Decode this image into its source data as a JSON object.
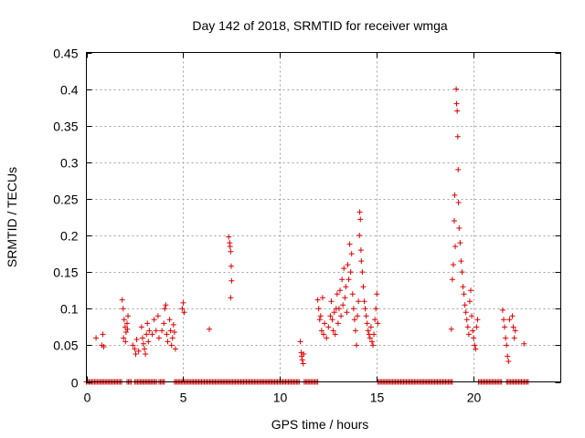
{
  "chart_data": {
    "type": "scatter",
    "title": "Day 142 of 2018, SRMTID for receiver wmga",
    "xlabel": "GPS time / hours",
    "ylabel": "SRMTID / TECUs",
    "xlim": [
      0,
      24.5
    ],
    "ylim": [
      0,
      0.45
    ],
    "x_ticks": [
      0,
      5,
      10,
      15,
      20
    ],
    "x_tick_labels": [
      "0",
      "5",
      "10",
      "15",
      "20"
    ],
    "y_ticks": [
      0,
      0.05,
      0.1,
      0.15,
      0.2,
      0.25,
      0.3,
      0.35,
      0.4,
      0.45
    ],
    "y_tick_labels": [
      "0",
      "0.05",
      "0.1",
      "0.15",
      "0.2",
      "0.25",
      "0.3",
      "0.35",
      "0.4",
      "0.45"
    ],
    "grid": true,
    "marker": "plus",
    "color": "#dd0000",
    "series": [
      {
        "name": "SRMTID",
        "points": [
          [
            0.5,
            0.06
          ],
          [
            0.8,
            0.05
          ],
          [
            0.85,
            0.065
          ],
          [
            0.9,
            0.048
          ],
          [
            1.85,
            0.112
          ],
          [
            1.9,
            0.1
          ],
          [
            1.95,
            0.085
          ],
          [
            2.0,
            0.075
          ],
          [
            2.05,
            0.068
          ],
          [
            2.1,
            0.08
          ],
          [
            2.15,
            0.09
          ],
          [
            1.92,
            0.06
          ],
          [
            2.02,
            0.055
          ],
          [
            2.12,
            0.072
          ],
          [
            2.4,
            0.05
          ],
          [
            2.5,
            0.045
          ],
          [
            2.55,
            0.038
          ],
          [
            2.6,
            0.058
          ],
          [
            2.7,
            0.042
          ],
          [
            2.85,
            0.075
          ],
          [
            2.9,
            0.06
          ],
          [
            2.95,
            0.052
          ],
          [
            3.0,
            0.045
          ],
          [
            3.05,
            0.038
          ],
          [
            3.1,
            0.065
          ],
          [
            3.15,
            0.08
          ],
          [
            3.2,
            0.055
          ],
          [
            3.25,
            0.07
          ],
          [
            3.4,
            0.065
          ],
          [
            3.5,
            0.085
          ],
          [
            3.6,
            0.07
          ],
          [
            3.7,
            0.09
          ],
          [
            3.75,
            0.06
          ],
          [
            3.9,
            0.07
          ],
          [
            4.0,
            0.08
          ],
          [
            4.05,
            0.1
          ],
          [
            4.1,
            0.105
          ],
          [
            4.15,
            0.065
          ],
          [
            4.2,
            0.055
          ],
          [
            4.3,
            0.085
          ],
          [
            4.35,
            0.07
          ],
          [
            4.4,
            0.05
          ],
          [
            4.45,
            0.06
          ],
          [
            4.5,
            0.078
          ],
          [
            4.55,
            0.068
          ],
          [
            4.6,
            0.045
          ],
          [
            4.95,
            0.1
          ],
          [
            5.0,
            0.108
          ],
          [
            5.05,
            0.095
          ],
          [
            6.35,
            0.072
          ],
          [
            7.35,
            0.198
          ],
          [
            7.4,
            0.19
          ],
          [
            7.42,
            0.185
          ],
          [
            7.45,
            0.178
          ],
          [
            7.48,
            0.158
          ],
          [
            7.5,
            0.138
          ],
          [
            7.45,
            0.115
          ],
          [
            11.05,
            0.055
          ],
          [
            11.1,
            0.04
          ],
          [
            11.12,
            0.035
          ],
          [
            11.15,
            0.03
          ],
          [
            11.2,
            0.025
          ],
          [
            11.22,
            0.038
          ],
          [
            11.95,
            0.112
          ],
          [
            12.0,
            0.1
          ],
          [
            12.05,
            0.085
          ],
          [
            12.1,
            0.09
          ],
          [
            12.15,
            0.07
          ],
          [
            12.2,
            0.115
          ],
          [
            12.25,
            0.065
          ],
          [
            12.3,
            0.08
          ],
          [
            12.4,
            0.06
          ],
          [
            12.5,
            0.075
          ],
          [
            12.6,
            0.09
          ],
          [
            12.65,
            0.11
          ],
          [
            12.7,
            0.085
          ],
          [
            12.75,
            0.07
          ],
          [
            12.8,
            0.095
          ],
          [
            12.85,
            0.065
          ],
          [
            12.9,
            0.1
          ],
          [
            12.95,
            0.12
          ],
          [
            13.0,
            0.08
          ],
          [
            13.05,
            0.1
          ],
          [
            13.1,
            0.125
          ],
          [
            13.15,
            0.09
          ],
          [
            13.2,
            0.14
          ],
          [
            13.25,
            0.105
          ],
          [
            13.3,
            0.155
          ],
          [
            13.35,
            0.115
          ],
          [
            13.4,
            0.13
          ],
          [
            13.45,
            0.095
          ],
          [
            13.5,
            0.16
          ],
          [
            13.55,
            0.14
          ],
          [
            13.6,
            0.188
          ],
          [
            13.65,
            0.15
          ],
          [
            13.7,
            0.175
          ],
          [
            13.75,
            0.12
          ],
          [
            13.8,
            0.1
          ],
          [
            13.85,
            0.085
          ],
          [
            13.9,
            0.07
          ],
          [
            13.95,
            0.05
          ],
          [
            14.0,
            0.09
          ],
          [
            14.05,
            0.11
          ],
          [
            14.1,
            0.2
          ],
          [
            14.12,
            0.232
          ],
          [
            14.15,
            0.222
          ],
          [
            14.18,
            0.18
          ],
          [
            14.2,
            0.165
          ],
          [
            14.25,
            0.15
          ],
          [
            14.3,
            0.13
          ],
          [
            14.35,
            0.11
          ],
          [
            14.4,
            0.1
          ],
          [
            14.45,
            0.09
          ],
          [
            14.5,
            0.08
          ],
          [
            14.55,
            0.07
          ],
          [
            14.6,
            0.065
          ],
          [
            14.65,
            0.06
          ],
          [
            14.7,
            0.075
          ],
          [
            14.75,
            0.055
          ],
          [
            14.8,
            0.05
          ],
          [
            14.85,
            0.065
          ],
          [
            14.9,
            0.085
          ],
          [
            14.95,
            0.1
          ],
          [
            15.0,
            0.12
          ],
          [
            15.05,
            0.08
          ],
          [
            18.85,
            0.072
          ],
          [
            18.9,
            0.14
          ],
          [
            18.95,
            0.16
          ],
          [
            19.0,
            0.22
          ],
          [
            19.02,
            0.255
          ],
          [
            19.05,
            0.185
          ],
          [
            19.1,
            0.4
          ],
          [
            19.12,
            0.38
          ],
          [
            19.15,
            0.37
          ],
          [
            19.18,
            0.335
          ],
          [
            19.2,
            0.29
          ],
          [
            19.22,
            0.245
          ],
          [
            19.25,
            0.21
          ],
          [
            19.3,
            0.19
          ],
          [
            19.35,
            0.165
          ],
          [
            19.4,
            0.15
          ],
          [
            19.45,
            0.13
          ],
          [
            19.5,
            0.12
          ],
          [
            19.55,
            0.105
          ],
          [
            19.6,
            0.095
          ],
          [
            19.65,
            0.085
          ],
          [
            19.7,
            0.075
          ],
          [
            19.75,
            0.065
          ],
          [
            19.8,
            0.11
          ],
          [
            19.85,
            0.125
          ],
          [
            19.9,
            0.09
          ],
          [
            19.95,
            0.07
          ],
          [
            20.0,
            0.06
          ],
          [
            20.05,
            0.05
          ],
          [
            20.1,
            0.045
          ],
          [
            20.15,
            0.075
          ],
          [
            20.2,
            0.085
          ],
          [
            21.5,
            0.098
          ],
          [
            21.55,
            0.085
          ],
          [
            21.6,
            0.075
          ],
          [
            21.65,
            0.06
          ],
          [
            21.7,
            0.05
          ],
          [
            21.75,
            0.035
          ],
          [
            21.8,
            0.028
          ],
          [
            21.85,
            0.085
          ],
          [
            22.0,
            0.09
          ],
          [
            22.05,
            0.075
          ],
          [
            22.1,
            0.06
          ],
          [
            22.15,
            0.07
          ],
          [
            22.6,
            0.052
          ]
        ],
        "zero_ranges": [
          [
            0.0,
            1.85
          ],
          [
            2.1,
            2.35
          ],
          [
            2.5,
            3.65
          ],
          [
            3.75,
            4.05
          ],
          [
            4.55,
            11.0
          ],
          [
            11.25,
            11.95
          ],
          [
            15.05,
            18.9
          ],
          [
            20.25,
            21.45
          ],
          [
            21.7,
            22.85
          ]
        ]
      }
    ]
  }
}
